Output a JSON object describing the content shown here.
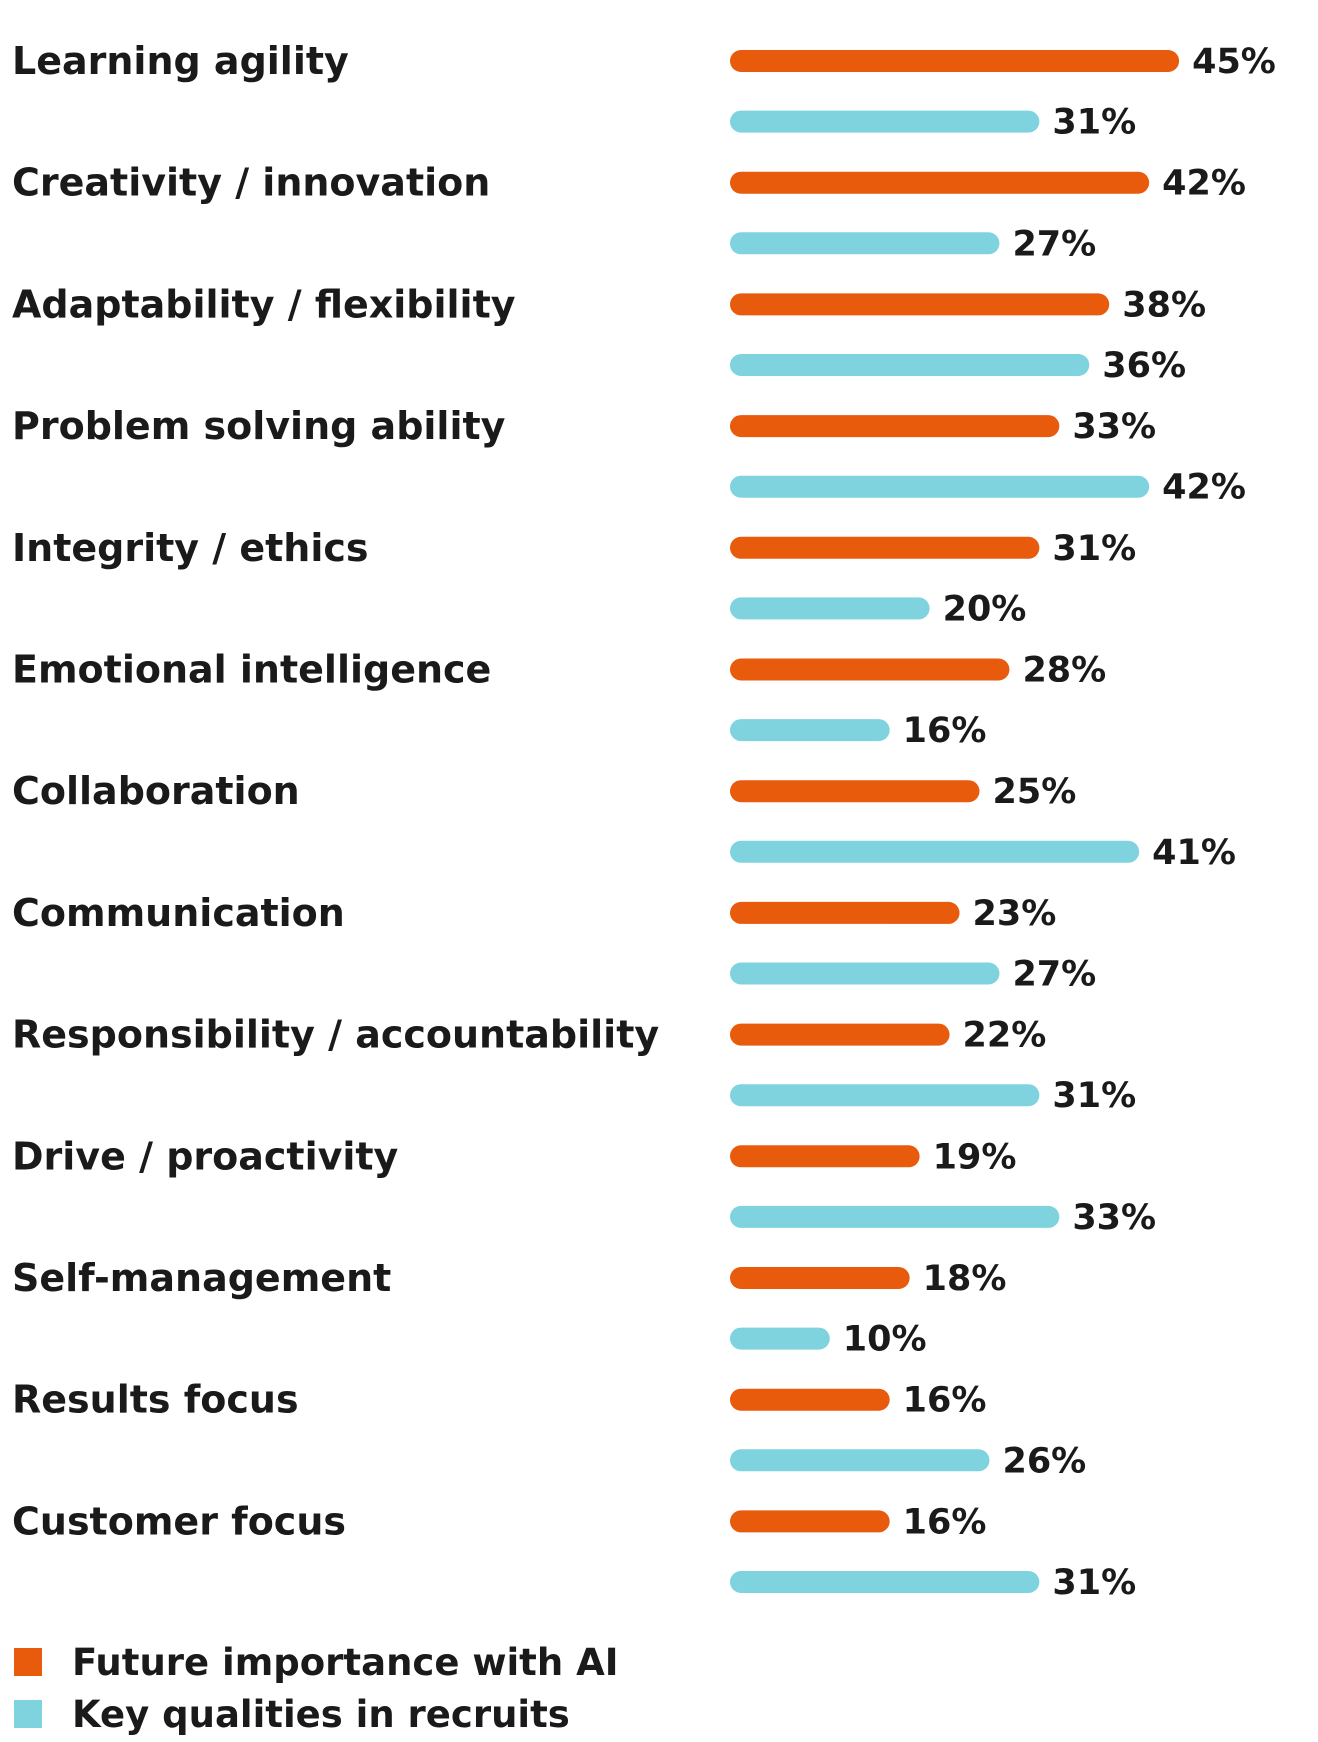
{
  "chart_data": {
    "type": "bar",
    "orientation": "horizontal",
    "value_suffix": "%",
    "categories": [
      "Learning agility",
      "Creativity / innovation",
      "Adaptability / flexibility",
      "Problem solving ability",
      "Integrity / ethics",
      "Emotional intelligence",
      "Collaboration",
      "Communication",
      "Responsibility / accountability",
      "Drive / proactivity",
      "Self-management",
      "Results focus",
      "Customer focus"
    ],
    "series": [
      {
        "name": "Future importance with AI",
        "color": "#E85A0C",
        "values": [
          45,
          42,
          38,
          33,
          31,
          28,
          25,
          23,
          22,
          19,
          18,
          16,
          16
        ]
      },
      {
        "name": "Key qualities in recruits",
        "color": "#7ED3DF",
        "values": [
          31,
          27,
          36,
          42,
          20,
          16,
          41,
          27,
          31,
          33,
          10,
          26,
          31
        ]
      }
    ],
    "grid": false,
    "legend_position": "bottom-left"
  }
}
